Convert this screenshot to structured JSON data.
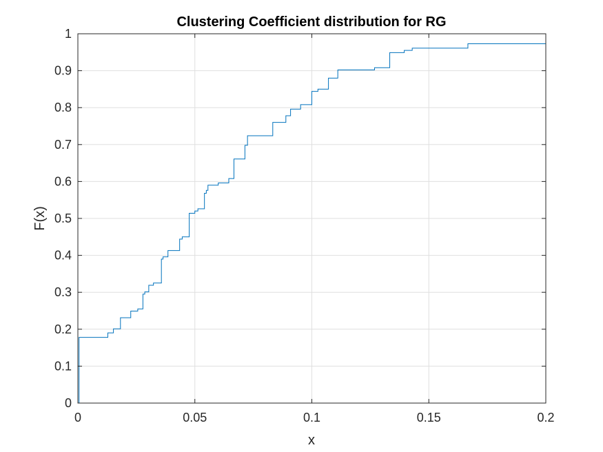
{
  "chart_data": {
    "type": "line",
    "title": "Clustering Coefficient distribution for RG",
    "xlabel": "x",
    "ylabel": "F(x)",
    "xlim": [
      0,
      0.2
    ],
    "ylim": [
      0,
      1
    ],
    "xticks": [
      0,
      0.05,
      0.1,
      0.15,
      0.2
    ],
    "xtick_labels": [
      "0",
      "0.05",
      "0.1",
      "0.15",
      "0.2"
    ],
    "yticks": [
      0,
      0.1,
      0.2,
      0.3,
      0.4,
      0.5,
      0.6,
      0.7,
      0.8,
      0.9,
      1
    ],
    "ytick_labels": [
      "0",
      "0.1",
      "0.2",
      "0.3",
      "0.4",
      "0.5",
      "0.6",
      "0.7",
      "0.8",
      "0.9",
      "1"
    ],
    "grid": true,
    "step": true,
    "line_color": "#0072BD",
    "series": [
      {
        "x": [
          0,
          0.0005,
          0.0005,
          0.0128,
          0.0128,
          0.0152,
          0.0152,
          0.0182,
          0.0182,
          0.0226,
          0.0226,
          0.0256,
          0.0256,
          0.0278,
          0.0278,
          0.0286,
          0.0286,
          0.0303,
          0.0303,
          0.0323,
          0.0323,
          0.0357,
          0.0357,
          0.0364,
          0.0364,
          0.0385,
          0.0385,
          0.04,
          0.04,
          0.0435,
          0.0435,
          0.0446,
          0.0446,
          0.0455,
          0.0455,
          0.0476,
          0.0476,
          0.05,
          0.05,
          0.0513,
          0.0513,
          0.0541,
          0.0541,
          0.0549,
          0.0549,
          0.0556,
          0.0556,
          0.06,
          0.06,
          0.0645,
          0.0645,
          0.0667,
          0.0667,
          0.0714,
          0.0714,
          0.0725,
          0.0725,
          0.0741,
          0.0741,
          0.0833,
          0.0833,
          0.0889,
          0.0889,
          0.0909,
          0.0909,
          0.0952,
          0.0952,
          0.1,
          0.1,
          0.1026,
          0.1026,
          0.1071,
          0.1071,
          0.1111,
          0.1111,
          0.1268,
          0.1268,
          0.1333,
          0.1333,
          0.1395,
          0.1395,
          0.1429,
          0.1429,
          0.1667,
          0.1667,
          0.2,
          0.2
        ],
        "y": [
          0,
          0,
          0.178,
          0.178,
          0.19,
          0.19,
          0.201,
          0.201,
          0.231,
          0.231,
          0.249,
          0.249,
          0.255,
          0.255,
          0.295,
          0.295,
          0.301,
          0.301,
          0.319,
          0.319,
          0.325,
          0.325,
          0.39,
          0.39,
          0.396,
          0.396,
          0.413,
          0.413,
          0.413,
          0.413,
          0.444,
          0.444,
          0.45,
          0.45,
          0.45,
          0.45,
          0.514,
          0.514,
          0.52,
          0.52,
          0.526,
          0.526,
          0.568,
          0.568,
          0.576,
          0.576,
          0.59,
          0.59,
          0.596,
          0.596,
          0.608,
          0.608,
          0.661,
          0.661,
          0.698,
          0.698,
          0.724,
          0.724,
          0.724,
          0.724,
          0.76,
          0.76,
          0.778,
          0.778,
          0.796,
          0.796,
          0.808,
          0.808,
          0.844,
          0.844,
          0.85,
          0.85,
          0.88,
          0.88,
          0.902,
          0.902,
          0.908,
          0.908,
          0.949,
          0.949,
          0.955,
          0.955,
          0.961,
          0.961,
          0.973,
          0.973,
          1.0
        ]
      }
    ]
  }
}
